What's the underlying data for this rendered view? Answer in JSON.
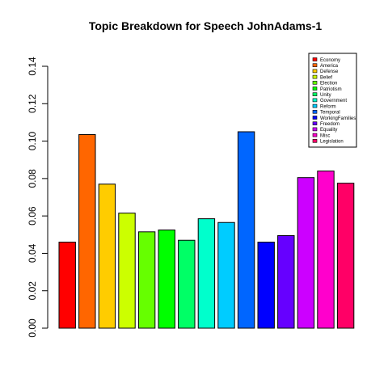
{
  "chart_data": {
    "type": "bar",
    "title": "Topic Breakdown for Speech JohnAdams-1",
    "xlabel": "",
    "ylabel": "",
    "ylim": [
      0,
      0.14
    ],
    "yticks": [
      "0.00",
      "0.02",
      "0.04",
      "0.06",
      "0.08",
      "0.10",
      "0.12",
      "0.14"
    ],
    "grid": false,
    "legend_position": "top-right",
    "categories": [
      "Economy",
      "America",
      "Defense",
      "Belief",
      "Election",
      "Patriotism",
      "Unity",
      "Government",
      "Reform",
      "Temporal",
      "WorkingFamilies",
      "Freedom",
      "Equality",
      "Misc",
      "Legislation"
    ],
    "values": [
      0.046,
      0.1035,
      0.077,
      0.0615,
      0.0515,
      0.0525,
      0.047,
      0.0585,
      0.0565,
      0.105,
      0.046,
      0.0495,
      0.0805,
      0.084,
      0.0775
    ],
    "colors": [
      "#FF0000",
      "#FF6600",
      "#FFCC00",
      "#CCFF00",
      "#66FF00",
      "#00FF00",
      "#00FF66",
      "#00FFCC",
      "#00CCFF",
      "#0066FF",
      "#0000FF",
      "#6600FF",
      "#CC00FF",
      "#FF00CC",
      "#FF0066"
    ]
  }
}
